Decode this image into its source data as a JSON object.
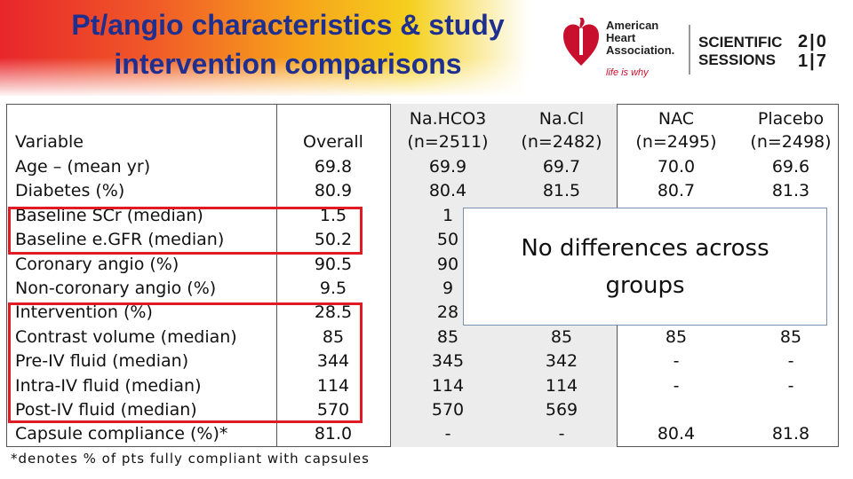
{
  "title": "Pt/angio characteristics &  study intervention comparisons",
  "logo": {
    "org_line1": "American",
    "org_line2": "Heart",
    "org_line3": "Association.",
    "tagline": "life is why",
    "event_line1": "SCIENTIFIC",
    "event_line2": "SESSIONS",
    "year_top": "2|0",
    "year_bottom": "1|7"
  },
  "table": {
    "headers": {
      "variable": "Variable",
      "overall": "Overall",
      "nahco3_line1": "Na.HCO3",
      "nahco3_line2": "(n=2511)",
      "nacl_line1": "Na.Cl",
      "nacl_line2": "(n=2482)",
      "nac_line1": "NAC",
      "nac_line2": "(n=2495)",
      "placebo_line1": "Placebo",
      "placebo_line2": "(n=2498)"
    },
    "rows": [
      {
        "variable": "Age – (mean yr)",
        "overall": "69.8",
        "nahco3": "69.9",
        "nacl": "69.7",
        "nac": "70.0",
        "placebo": "69.6"
      },
      {
        "variable": "Diabetes (%)",
        "overall": "80.9",
        "nahco3": "80.4",
        "nacl": "81.5",
        "nac": "80.7",
        "placebo": "81.3"
      },
      {
        "variable": "Baseline SCr (median)",
        "overall": "1.5",
        "nahco3": "1",
        "nacl": "",
        "nac": "",
        "placebo": ""
      },
      {
        "variable": "Baseline e.GFR (median)",
        "overall": "50.2",
        "nahco3": "50",
        "nacl": "",
        "nac": "",
        "placebo": ""
      },
      {
        "variable": "Coronary angio (%)",
        "overall": "90.5",
        "nahco3": "90",
        "nacl": "",
        "nac": "",
        "placebo": ""
      },
      {
        "variable": "Non-coronary angio (%)",
        "overall": "9.5",
        "nahco3": "9",
        "nacl": "",
        "nac": "",
        "placebo": ""
      },
      {
        "variable": "Intervention (%)",
        "overall": "28.5",
        "nahco3": "28",
        "nacl": "",
        "nac": "",
        "placebo": ""
      },
      {
        "variable": "Contrast volume (median)",
        "overall": "85",
        "nahco3": "85",
        "nacl": "85",
        "nac": "85",
        "placebo": "85"
      },
      {
        "variable": "Pre-IV fluid (median)",
        "overall": "344",
        "nahco3": "345",
        "nacl": "342",
        "nac": "-",
        "placebo": "-"
      },
      {
        "variable": "Intra-IV fluid (median)",
        "overall": "114",
        "nahco3": "114",
        "nacl": "114",
        "nac": "-",
        "placebo": "-"
      },
      {
        "variable": "Post-IV fluid (median)",
        "overall": "570",
        "nahco3": "570",
        "nacl": "569",
        "nac": "",
        "placebo": ""
      },
      {
        "variable": "Capsule compliance (%)*",
        "overall": "81.0",
        "nahco3": "-",
        "nacl": "-",
        "nac": "80.4",
        "placebo": "81.8"
      }
    ]
  },
  "overlay": {
    "line1": "No differences across",
    "line2": "groups"
  },
  "footnote": "*denotes % of pts fully compliant with capsules",
  "colors": {
    "title": "#1f2f8f",
    "highlight": "#e01b24",
    "aha_red": "#c8102e"
  }
}
